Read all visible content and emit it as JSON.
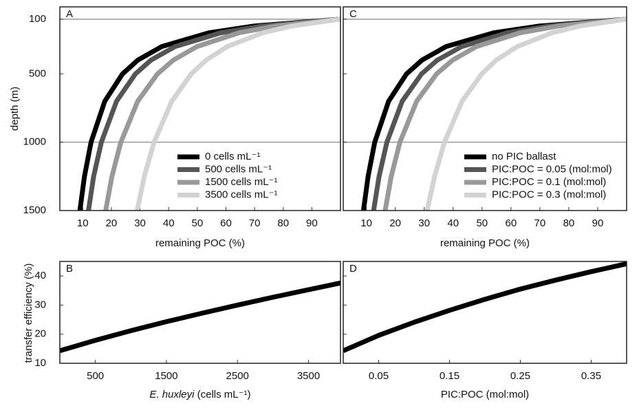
{
  "chart_data": [
    {
      "type": "line",
      "panel": "A",
      "ylabel": "depth (m)",
      "xlabel": "remaining POC (%)",
      "xlim": [
        2,
        100
      ],
      "xticks": [
        10,
        20,
        30,
        40,
        50,
        60,
        70,
        80,
        90
      ],
      "ylim": [
        10,
        1500
      ],
      "yticks": [
        100,
        500,
        1000,
        1500
      ],
      "y_inverted": true,
      "ytick_labels": true,
      "hlines": [
        100,
        1000
      ],
      "y": [
        100,
        150,
        200,
        300,
        400,
        500,
        700,
        1000,
        1250,
        1500
      ],
      "series": [
        {
          "name": "0 cells mL⁻¹",
          "color": "#000000",
          "x": [
            100,
            69.8,
            54.0,
            37.6,
            29.2,
            23.9,
            17.7,
            12.9,
            10.6,
            9.0
          ]
        },
        {
          "name": "500 cells mL⁻¹",
          "color": "#555555",
          "x": [
            100,
            72.8,
            58.1,
            42.3,
            33.8,
            28.4,
            21.8,
            16.5,
            13.8,
            12.0
          ]
        },
        {
          "name": "1500 cells mL⁻¹",
          "color": "#999999",
          "x": [
            100,
            77.4,
            64.5,
            49.9,
            41.6,
            36.1,
            29.2,
            23.3,
            20.2,
            18.0
          ]
        },
        {
          "name": "3500 cells mL⁻¹",
          "color": "#d3d3d3",
          "x": [
            100,
            83.1,
            72.8,
            60.5,
            53.1,
            47.9,
            41.1,
            34.9,
            31.5,
            29.0
          ]
        }
      ]
    },
    {
      "type": "line",
      "panel": "C",
      "xlabel": "remaining POC (%)",
      "xlim": [
        2,
        100
      ],
      "xticks": [
        10,
        20,
        30,
        40,
        50,
        60,
        70,
        80,
        90
      ],
      "ylim": [
        10,
        1500
      ],
      "yticks": [
        100,
        500,
        1000,
        1500
      ],
      "y_inverted": true,
      "ytick_labels": false,
      "hlines": [
        100,
        1000
      ],
      "y": [
        100,
        150,
        200,
        300,
        400,
        500,
        700,
        1000,
        1250,
        1500
      ],
      "series": [
        {
          "name": "no PIC ballast",
          "color": "#000000",
          "x": [
            100,
            69.8,
            54.0,
            37.6,
            29.2,
            23.9,
            17.7,
            12.9,
            10.6,
            9.0
          ]
        },
        {
          "name": "PIC:POC = 0.05 (mol:mol)",
          "color": "#555555",
          "x": [
            100,
            73.3,
            58.7,
            43.0,
            34.5,
            29.1,
            22.4,
            17.1,
            14.4,
            12.5
          ]
        },
        {
          "name": "PIC:POC = 0.1 (mol:mol)",
          "color": "#999999",
          "x": [
            100,
            76.4,
            63.1,
            48.1,
            39.8,
            34.3,
            27.4,
            21.6,
            18.6,
            16.5
          ]
        },
        {
          "name": "PIC:POC = 0.3 (mol:mol)",
          "color": "#d3d3d3",
          "x": [
            100,
            83.9,
            74.2,
            62.2,
            54.9,
            49.9,
            43.1,
            37.0,
            33.6,
            31.0
          ]
        }
      ]
    },
    {
      "type": "line",
      "panel": "B",
      "ylabel": "transfer efficiency (%)",
      "xlabel": {
        "italic": "E. huxleyi",
        "rest": " (cells mL⁻¹)"
      },
      "xlim": [
        0,
        3950
      ],
      "xticks": [
        500,
        1500,
        2500,
        3500
      ],
      "ylim": [
        10,
        45
      ],
      "yticks": [
        10,
        20,
        30,
        40
      ],
      "ytick_labels": true,
      "x": [
        0,
        500,
        1000,
        1500,
        2000,
        2500,
        3000,
        3500,
        3950
      ],
      "series": [
        {
          "color": "#000000",
          "values": [
            14.3,
            17.9,
            21.2,
            24.3,
            27.2,
            30.0,
            32.7,
            35.3,
            37.6
          ]
        }
      ]
    },
    {
      "type": "line",
      "panel": "D",
      "xlabel": "PIC:POC (mol:mol)",
      "xlim": [
        0,
        0.4
      ],
      "xticks": [
        0.05,
        0.15,
        0.25,
        0.35
      ],
      "ylim": [
        10,
        45
      ],
      "yticks": [
        10,
        20,
        30,
        40
      ],
      "ytick_labels": false,
      "x": [
        0,
        0.05,
        0.1,
        0.15,
        0.2,
        0.25,
        0.3,
        0.35,
        0.4
      ],
      "series": [
        {
          "color": "#000000",
          "values": [
            14.3,
            19.6,
            24.1,
            28.2,
            32.0,
            35.5,
            38.6,
            41.5,
            44.2
          ]
        }
      ]
    }
  ]
}
